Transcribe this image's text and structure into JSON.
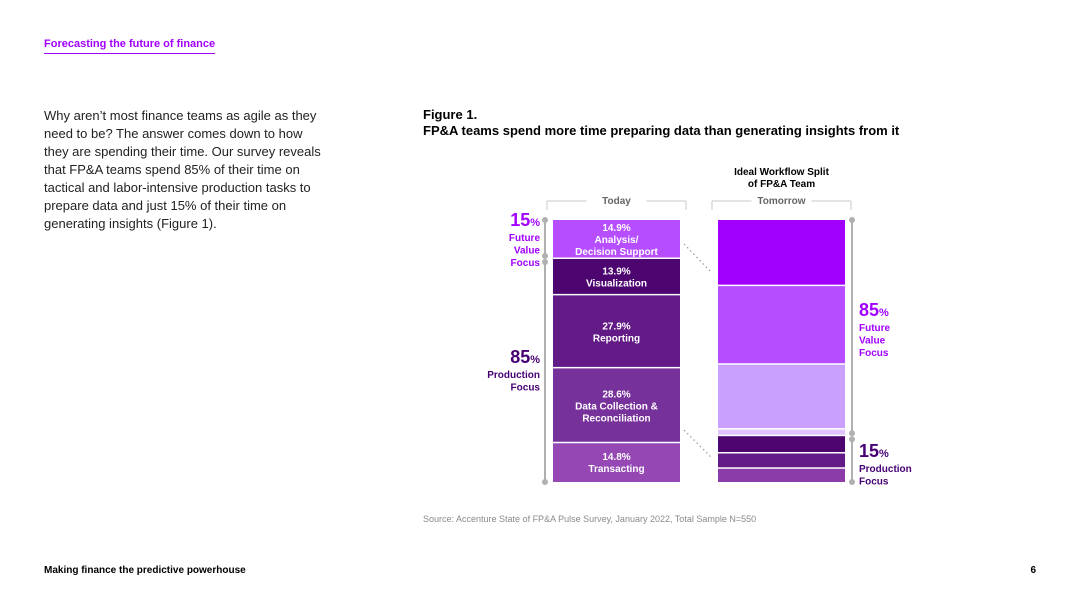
{
  "header": {
    "title": "Forecasting the future of finance"
  },
  "intro_text": "Why aren’t most finance teams as agile as they need to be? The answer comes down to how they are spending their time. Our survey reveals that FP&A teams spend 85% of their time on tactical and labor-intensive production tasks to prepare data and just 15% of their time on generating insights (Figure 1).",
  "figure": {
    "label": "Figure 1.",
    "title": "FP&A teams spend more time preparing data than generating insights from it"
  },
  "source": "Source: Accenture State of FP&A Pulse Survey, January 2022, Total Sample N=550",
  "footer": {
    "left": "Making finance the predictive powerhouse",
    "page_number": "6"
  },
  "chart_data": {
    "type": "bar",
    "stacked": true,
    "title": "FP&A teams spend more time preparing data than generating insights from it",
    "ideal_title_lines": [
      "Ideal Workflow Split",
      "of FP&A Team"
    ],
    "columns": [
      {
        "label": "Today",
        "segments": [
          {
            "value": 14.9,
            "label_value": "14.9%",
            "label_lines": [
              "Analysis/",
              "Decision Support"
            ],
            "color": "#b64dff"
          },
          {
            "value": 13.9,
            "label_value": "13.9%",
            "label_lines": [
              "Visualization"
            ],
            "color": "#4d0670"
          },
          {
            "value": 27.9,
            "label_value": "27.9%",
            "label_lines": [
              "Reporting"
            ],
            "color": "#621a86"
          },
          {
            "value": 28.6,
            "label_value": "28.6%",
            "label_lines": [
              "Data Collection &",
              "Reconciliation"
            ],
            "color": "#77319a"
          },
          {
            "value": 14.8,
            "label_value": "14.8%",
            "label_lines": [
              "Transacting"
            ],
            "color": "#9548b4"
          }
        ]
      },
      {
        "label": "Tomorrow",
        "segments": [
          {
            "value": 26.0,
            "color": "#a100ff"
          },
          {
            "value": 30.9,
            "color": "#b64dff"
          },
          {
            "value": 25.5,
            "color": "#caa0ff"
          },
          {
            "value": 2.6,
            "color": "#e1c4ff"
          },
          {
            "value": 6.8,
            "color": "#4d0670"
          },
          {
            "value": 6.0,
            "color": "#621a86"
          },
          {
            "value": 5.2,
            "color": "#8c3ca8"
          }
        ]
      }
    ],
    "annotations": {
      "today_top": {
        "number": "15",
        "symbol": "%",
        "lines": [
          "Future",
          "Value",
          "Focus"
        ],
        "color": "#a100ff"
      },
      "today_bottom": {
        "number": "85",
        "symbol": "%",
        "lines": [
          "Production",
          "Focus"
        ],
        "color": "#460073"
      },
      "tomorrow_top": {
        "number": "85",
        "symbol": "%",
        "lines": [
          "Future",
          "Value",
          "Focus"
        ],
        "color": "#a100ff"
      },
      "tomorrow_bottom": {
        "number": "15",
        "symbol": "%",
        "lines": [
          "Production",
          "Focus"
        ],
        "color": "#460073"
      }
    },
    "bracket_color": "#b0b0b0"
  }
}
